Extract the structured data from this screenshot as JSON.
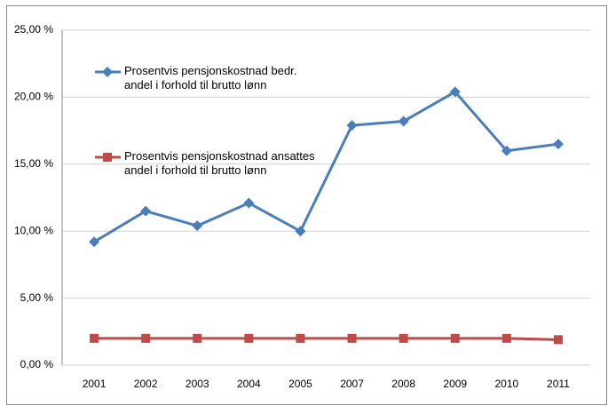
{
  "chart_data": {
    "type": "line",
    "categories": [
      "2001",
      "2002",
      "2003",
      "2004",
      "2005",
      "2007",
      "2008",
      "2009",
      "2010",
      "2011"
    ],
    "series": [
      {
        "name": "Prosentvis pensjonskostnad bedr.\nandel i forhold til brutto lønn",
        "color": "#4a7ebb",
        "marker": "diamond",
        "values": [
          9.2,
          11.5,
          10.4,
          12.1,
          10.0,
          17.9,
          18.2,
          20.4,
          16.0,
          16.5
        ]
      },
      {
        "name": "Prosentvis pensjonskostnad ansattes\nandel i forhold til brutto lønn",
        "color": "#be4b48",
        "marker": "square",
        "values": [
          2.0,
          2.0,
          2.0,
          2.0,
          2.0,
          2.0,
          2.0,
          2.0,
          2.0,
          1.9
        ]
      }
    ],
    "ylim": [
      0,
      25
    ],
    "yticks": [
      {
        "value": 0,
        "label": "0,00 %"
      },
      {
        "value": 5,
        "label": "5,00 %"
      },
      {
        "value": 10,
        "label": "10,00 %"
      },
      {
        "value": 15,
        "label": "15,00 %"
      },
      {
        "value": 20,
        "label": "20,00 %"
      },
      {
        "value": 25,
        "label": "25,00 %"
      }
    ],
    "grid": true
  }
}
